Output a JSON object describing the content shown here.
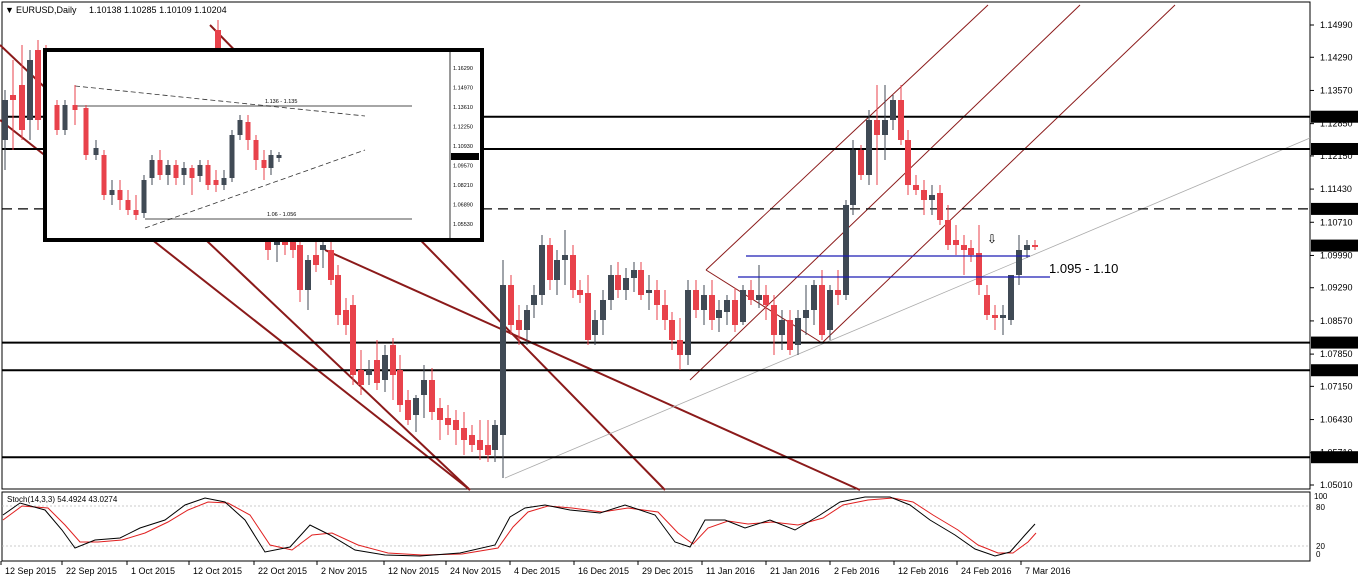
{
  "header": {
    "symbol": "EURUSD,Daily",
    "ohlc": "1.10138 1.10285 1.10109 1.10204",
    "menu_glyph": "▼"
  },
  "price_axis": {
    "ticks": [
      "1.14990",
      "1.14290",
      "1.13570",
      "1.12850",
      "1.12150",
      "1.11430",
      "1.10710",
      "1.09990",
      "1.09290",
      "1.08570",
      "1.07850",
      "1.07150",
      "1.06430",
      "1.05710",
      "1.05010"
    ],
    "tick_values": [
      1.1499,
      1.1429,
      1.1357,
      1.1285,
      1.1215,
      1.1143,
      1.1071,
      1.0999,
      1.0929,
      1.0857,
      1.0785,
      1.0715,
      1.0643,
      1.0571,
      1.0501
    ]
  },
  "levels": [
    {
      "label": "1.13000",
      "value": 1.13,
      "style": "solid"
    },
    {
      "label": "1.12300",
      "value": 1.123,
      "style": "solid"
    },
    {
      "label": "1.11000",
      "value": 1.11,
      "style": "dashed"
    },
    {
      "label": "1.10204",
      "value": 1.10204,
      "style": "current"
    },
    {
      "label": "1.08100",
      "value": 1.081,
      "style": "solid"
    },
    {
      "label": "1.07500",
      "value": 1.075,
      "style": "solid"
    },
    {
      "label": "1.05613",
      "value": 1.05613,
      "style": "solid"
    }
  ],
  "annotations": {
    "zone_label": "1.095 - 1.10",
    "arrow_glyph": "⇩"
  },
  "inset": {
    "label_top": "1.136 - 1.135",
    "label_bottom": "1.06 - 1.056",
    "ticks": [
      "1.16290",
      "1.14970",
      "1.13610",
      "1.12250",
      "1.10930",
      "1.09570",
      "1.08210",
      "1.06890",
      "1.05530"
    ],
    "current": "1.10204"
  },
  "indicator": {
    "label": "Stoch(14,3,3) 54.4924 43.0274",
    "scale_top": "100",
    "scale_80": "80",
    "scale_20": "20",
    "scale_0": "0"
  },
  "date_axis": [
    "12 Sep 2015",
    "22 Sep 2015",
    "1 Oct 2015",
    "12 Oct 2015",
    "22 Oct 2015",
    "2 Nov 2015",
    "12 Nov 2015",
    "24 Nov 2015",
    "4 Dec 2015",
    "16 Dec 2015",
    "29 Dec 2015",
    "11 Jan 2016",
    "21 Jan 2016",
    "2 Feb 2016",
    "12 Feb 2016",
    "24 Feb 2016",
    "7 Mar 2016"
  ],
  "colors": {
    "bull": "#404a55",
    "bear": "#e8424b",
    "channel": "#8b1a1a",
    "zone": "#1c1cb4",
    "label_bg": "#000000"
  }
}
